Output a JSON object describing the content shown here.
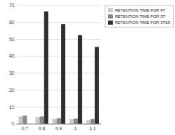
{
  "chart_data": {
    "type": "bar",
    "categories": [
      "0.7",
      "0.8",
      "0.9",
      "1",
      "1.1"
    ],
    "series": [
      {
        "name": "RETENTION TIME FOR 4T",
        "color": "#c8c8c8",
        "values": [
          4.5,
          4.0,
          3.0,
          2.8,
          2.5
        ]
      },
      {
        "name": "RETENTION TIME FOR 3T",
        "color": "#888888",
        "values": [
          5.0,
          4.5,
          3.5,
          3.2,
          3.0
        ]
      },
      {
        "name": "RETENTION TIME FOR 3T1D",
        "color": "#303030",
        "values": [
          0.0,
          66.5,
          59.0,
          52.5,
          45.5
        ]
      }
    ],
    "ylim": [
      0,
      70
    ],
    "yticks": [
      0,
      10,
      20,
      30,
      40,
      50,
      60,
      70
    ],
    "grid": true,
    "legend": "right"
  }
}
